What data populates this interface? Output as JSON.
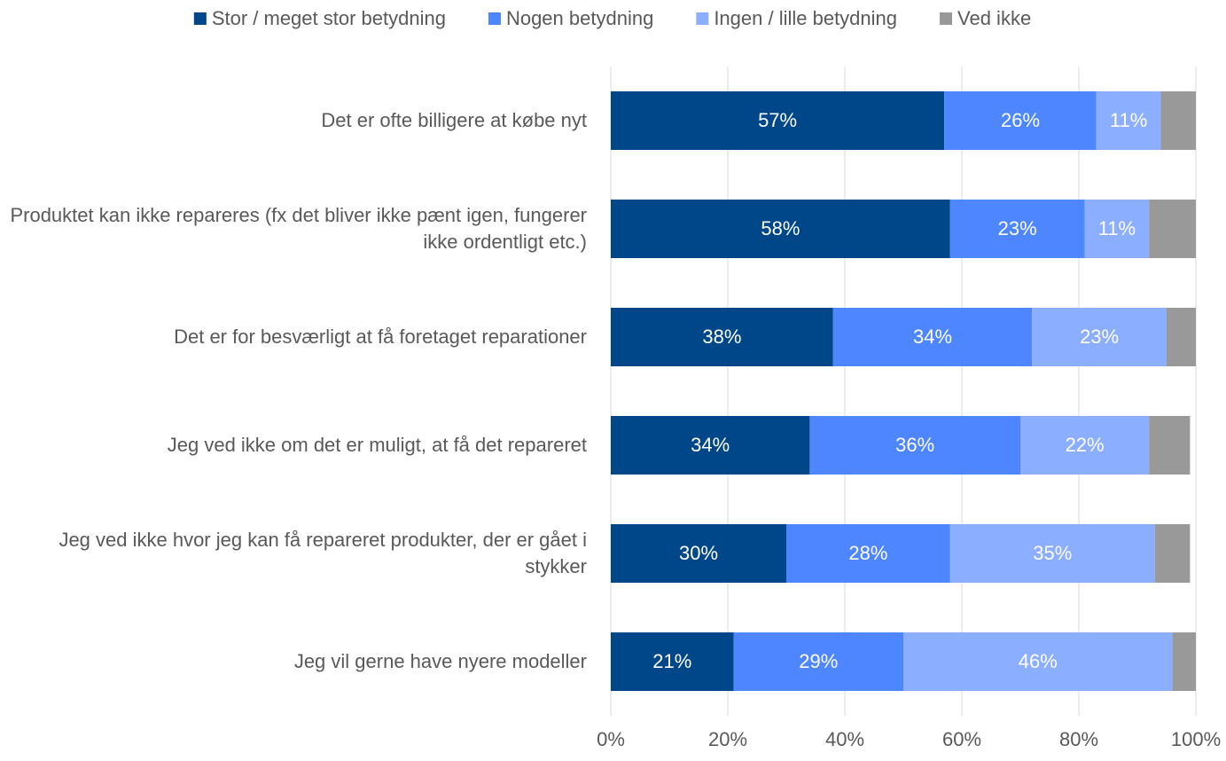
{
  "chart_data": {
    "type": "stacked_bar_horizontal",
    "categories": [
      "Det er ofte billigere at købe nyt",
      "Produktet kan ikke repareres (fx det bliver ikke pænt igen, fungerer ikke ordentligt etc.)",
      "Det er for besværligt at få foretaget reparationer",
      "Jeg ved ikke om det er muligt, at få det repareret",
      "Jeg ved ikke hvor jeg kan få repareret produkter, der er gået i stykker",
      "Jeg vil gerne have nyere modeller"
    ],
    "series": [
      {
        "name": "Stor / meget stor betydning",
        "color": "#00478a",
        "values": [
          57,
          58,
          38,
          34,
          30,
          21
        ],
        "value_labels": [
          "57%",
          "58%",
          "38%",
          "34%",
          "30%",
          "21%"
        ]
      },
      {
        "name": "Nogen betydning",
        "color": "#4d86ff",
        "values": [
          26,
          23,
          34,
          36,
          28,
          29
        ],
        "value_labels": [
          "26%",
          "23%",
          "34%",
          "36%",
          "28%",
          "29%"
        ]
      },
      {
        "name": "Ingen / lille betydning",
        "color": "#8caeff",
        "values": [
          11,
          11,
          23,
          22,
          35,
          46
        ],
        "value_labels": [
          "11%",
          "11%",
          "23%",
          "22%",
          "35%",
          "46%"
        ]
      },
      {
        "name": "Ved ikke",
        "color": "#999999",
        "values": [
          6,
          8,
          5,
          7,
          6,
          4
        ]
      }
    ],
    "xlim": [
      0,
      100
    ],
    "xticks": [
      {
        "value": 0,
        "label": "0%"
      },
      {
        "value": 20,
        "label": "20%"
      },
      {
        "value": 40,
        "label": "40%"
      },
      {
        "value": 60,
        "label": "60%"
      },
      {
        "value": 80,
        "label": "80%"
      },
      {
        "value": 100,
        "label": "100%"
      }
    ],
    "grid": true,
    "legend": "top"
  }
}
